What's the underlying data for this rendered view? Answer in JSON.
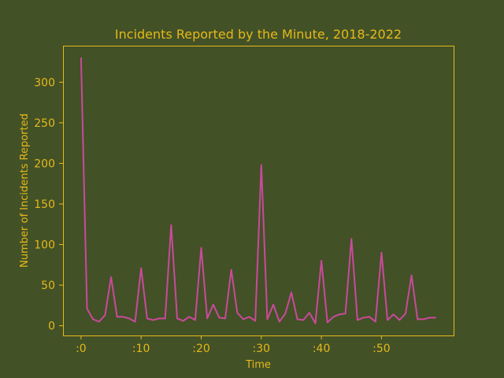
{
  "colors": {
    "background": "#435126",
    "text": "#e5b91b",
    "axes": "#e5b91b",
    "line": "#c94a9c"
  },
  "chart_data": {
    "type": "line",
    "title": "Incidents Reported by the Minute, 2018-2022",
    "xlabel": "Time",
    "ylabel": "Number of Incidents Reported",
    "xlim": [
      -3,
      62
    ],
    "ylim": [
      -12,
      345
    ],
    "grid": false,
    "x_ticks": [
      {
        "value": 0,
        "label": ":0"
      },
      {
        "value": 10,
        "label": ":10"
      },
      {
        "value": 20,
        "label": ":20"
      },
      {
        "value": 30,
        "label": ":30"
      },
      {
        "value": 40,
        "label": ":40"
      },
      {
        "value": 50,
        "label": ":50"
      }
    ],
    "y_ticks": [
      {
        "value": 0,
        "label": "0"
      },
      {
        "value": 50,
        "label": "50"
      },
      {
        "value": 100,
        "label": "100"
      },
      {
        "value": 150,
        "label": "150"
      },
      {
        "value": 200,
        "label": "200"
      },
      {
        "value": 250,
        "label": "250"
      },
      {
        "value": 300,
        "label": "300"
      }
    ],
    "series": [
      {
        "x": [
          0,
          1,
          2,
          3,
          4,
          5,
          6,
          7,
          8,
          9,
          10,
          11,
          12,
          13,
          14,
          15,
          16,
          17,
          18,
          19,
          20,
          21,
          22,
          23,
          24,
          25,
          26,
          27,
          28,
          29,
          30,
          31,
          32,
          33,
          34,
          35,
          36,
          37,
          38,
          39,
          40,
          41,
          42,
          43,
          44,
          45,
          46,
          47,
          48,
          49,
          50,
          51,
          52,
          53,
          54,
          55,
          56,
          57,
          58,
          59
        ],
        "values": [
          330,
          21,
          8,
          5,
          13,
          60,
          11,
          11,
          9,
          5,
          71,
          9,
          7,
          9,
          9,
          124,
          9,
          6,
          11,
          7,
          96,
          9,
          26,
          10,
          9,
          69,
          16,
          8,
          11,
          6,
          198,
          8,
          26,
          5,
          15,
          41,
          8,
          7,
          16,
          3,
          80,
          4,
          11,
          14,
          15,
          107,
          7,
          10,
          11,
          5,
          90,
          7,
          14,
          7,
          15,
          62,
          8,
          8,
          10,
          10
        ]
      }
    ]
  }
}
